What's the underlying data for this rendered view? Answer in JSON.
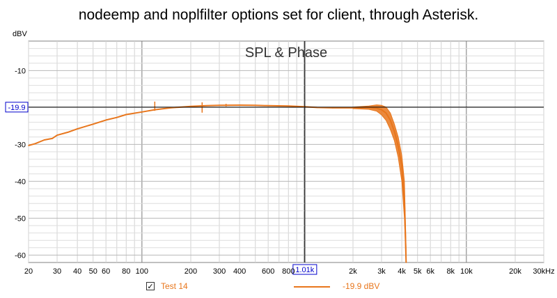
{
  "page": {
    "title": "nodeemp and noplfilter options set for client, through Asterisk."
  },
  "chart_data": {
    "type": "line",
    "title": "SPL & Phase",
    "ylabel": "dBV",
    "xlabel": "",
    "x_scale": "log",
    "xlim": [
      20,
      30000
    ],
    "ylim": [
      -62,
      -2
    ],
    "grid": true,
    "x_tick_labels": [
      {
        "value": 20,
        "label": "20"
      },
      {
        "value": 30,
        "label": "30"
      },
      {
        "value": 40,
        "label": "40"
      },
      {
        "value": 50,
        "label": "50"
      },
      {
        "value": 60,
        "label": "60"
      },
      {
        "value": 80,
        "label": "80"
      },
      {
        "value": 100,
        "label": "100"
      },
      {
        "value": 200,
        "label": "200"
      },
      {
        "value": 300,
        "label": "300"
      },
      {
        "value": 400,
        "label": "400"
      },
      {
        "value": 600,
        "label": "600"
      },
      {
        "value": 800,
        "label": "800"
      },
      {
        "value": 2000,
        "label": "2k"
      },
      {
        "value": 3000,
        "label": "3k"
      },
      {
        "value": 4000,
        "label": "4k"
      },
      {
        "value": 5000,
        "label": "5k"
      },
      {
        "value": 6000,
        "label": "6k"
      },
      {
        "value": 8000,
        "label": "8k"
      },
      {
        "value": 10000,
        "label": "10k"
      },
      {
        "value": 20000,
        "label": "20k"
      },
      {
        "value": 30000,
        "label": "30kHz"
      }
    ],
    "y_tick_labels": [
      {
        "value": -10,
        "label": "-10"
      },
      {
        "value": -30,
        "label": "-30"
      },
      {
        "value": -40,
        "label": "-40"
      },
      {
        "value": -50,
        "label": "-50"
      },
      {
        "value": -60,
        "label": "-60"
      }
    ],
    "cursor": {
      "x": 1010,
      "y": -19.9,
      "x_label": "1.01k",
      "y_label": "-19.9"
    },
    "series": [
      {
        "name": "Test 14",
        "color": "#e8761c",
        "legend_value": "-19.9 dBV",
        "x": [
          20,
          22,
          25,
          28,
          30,
          35,
          40,
          50,
          60,
          70,
          80,
          100,
          120,
          150,
          200,
          250,
          300,
          400,
          500,
          600,
          800,
          1000,
          1200,
          1500,
          2000,
          2500,
          2800,
          3000,
          3200,
          3400,
          3600,
          3800,
          4000,
          4150,
          4250
        ],
        "y": [
          -30.3,
          -29.8,
          -28.8,
          -28.4,
          -27.5,
          -26.7,
          -25.8,
          -24.5,
          -23.4,
          -22.7,
          -21.9,
          -21.2,
          -20.6,
          -20.1,
          -19.7,
          -19.5,
          -19.4,
          -19.35,
          -19.4,
          -19.5,
          -19.6,
          -19.8,
          -20.0,
          -20.1,
          -20.1,
          -20.0,
          -20.2,
          -20.6,
          -21.5,
          -23.5,
          -26.5,
          -30.5,
          -36.0,
          -45.0,
          -62.0
        ],
        "band_upper": [
          null,
          null,
          null,
          null,
          null,
          null,
          null,
          null,
          null,
          null,
          null,
          null,
          null,
          null,
          null,
          null,
          null,
          null,
          null,
          null,
          null,
          null,
          null,
          null,
          -19.9,
          -19.6,
          -19.3,
          -19.4,
          -19.9,
          -21.5,
          -24.5,
          -28.0,
          -33.0,
          -40.0,
          -58.0
        ],
        "band_lower": [
          null,
          null,
          null,
          null,
          null,
          null,
          null,
          null,
          null,
          null,
          null,
          null,
          null,
          null,
          null,
          null,
          null,
          null,
          null,
          null,
          null,
          null,
          null,
          null,
          -20.3,
          -20.5,
          -21.0,
          -22.0,
          -23.5,
          -26.0,
          -29.0,
          -33.5,
          -40.0,
          -50.0,
          -62.0
        ],
        "spikes": [
          {
            "x": 120,
            "y_top": -18.4,
            "y_bottom": -20.9
          },
          {
            "x": 235,
            "y_top": -18.6,
            "y_bottom": -21.4
          },
          {
            "x": 330,
            "y_top": -19.0,
            "y_bottom": -19.7
          }
        ]
      }
    ]
  },
  "legend": {
    "checkbox_mark": "✓"
  }
}
